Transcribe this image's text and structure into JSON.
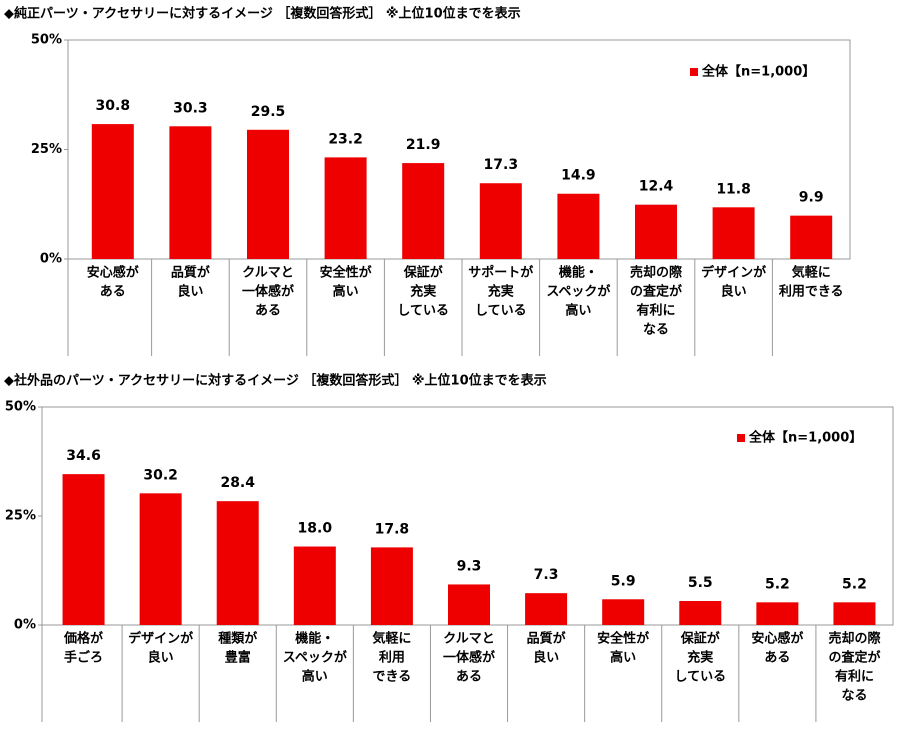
{
  "chart_data": [
    {
      "type": "bar",
      "title": "◆純正パーツ・アクセサリーに対するイメージ ［複数回答形式］ ※上位10位までを表示",
      "categories": [
        [
          "安心感が",
          "ある"
        ],
        [
          "品質が",
          "良い"
        ],
        [
          "クルマと",
          "一体感が",
          "ある"
        ],
        [
          "安全性が",
          "高い"
        ],
        [
          "保証が",
          "充実",
          "している"
        ],
        [
          "サポートが",
          "充実",
          "している"
        ],
        [
          "機能・",
          "スペックが",
          "高い"
        ],
        [
          "売却の際",
          "の査定が",
          "有利に",
          "なる"
        ],
        [
          "デザインが",
          "良い"
        ],
        [
          "気軽に",
          "利用できる"
        ]
      ],
      "series": [
        {
          "name": "全体【n=1,000】",
          "color": "#ee0000",
          "values": [
            30.8,
            30.3,
            29.5,
            23.2,
            21.9,
            17.3,
            14.9,
            12.4,
            11.8,
            9.9
          ]
        }
      ],
      "ylim": [
        0,
        50
      ],
      "yticks": [
        {
          "value": 0,
          "label": "0%"
        },
        {
          "value": 25,
          "label": "25%"
        },
        {
          "value": 50,
          "label": "50%"
        }
      ],
      "grid": false,
      "legend": "upper-right"
    },
    {
      "type": "bar",
      "title": "◆社外品のパーツ・アクセサリーに対するイメージ ［複数回答形式］ ※上位10位までを表示",
      "categories": [
        [
          "価格が",
          "手ごろ"
        ],
        [
          "デザインが",
          "良い"
        ],
        [
          "種類が",
          "豊富"
        ],
        [
          "機能・",
          "スペックが",
          "高い"
        ],
        [
          "気軽に",
          "利用",
          "できる"
        ],
        [
          "クルマと",
          "一体感が",
          "ある"
        ],
        [
          "品質が",
          "良い"
        ],
        [
          "安全性が",
          "高い"
        ],
        [
          "保証が",
          "充実",
          "している"
        ],
        [
          "安心感が",
          "ある"
        ],
        [
          "売却の際",
          "の査定が",
          "有利に",
          "なる"
        ]
      ],
      "series": [
        {
          "name": "全体【n=1,000】",
          "color": "#ee0000",
          "values": [
            34.6,
            30.2,
            28.4,
            18.0,
            17.8,
            9.3,
            7.3,
            5.9,
            5.5,
            5.2,
            5.2
          ],
          "value_labels": [
            "34.6",
            "30.2",
            "28.4",
            "18.0",
            "17.8",
            "9.3",
            "7.3",
            "5.9",
            "5.5",
            "5.2",
            "5.2"
          ]
        }
      ],
      "ylim": [
        0,
        50
      ],
      "yticks": [
        {
          "value": 0,
          "label": "0%"
        },
        {
          "value": 25,
          "label": "25%"
        },
        {
          "value": 50,
          "label": "50%"
        }
      ],
      "grid": false,
      "legend": "upper-right"
    }
  ]
}
